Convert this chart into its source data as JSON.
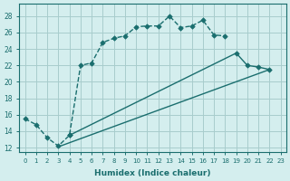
{
  "xlabel": "Humidex (Indice chaleur)",
  "background_color": "#d4eeee",
  "grid_color": "#a8cccc",
  "line_color": "#1a6e6e",
  "xlim": [
    -0.5,
    23.5
  ],
  "ylim": [
    11.5,
    29.5
  ],
  "xticks": [
    0,
    1,
    2,
    3,
    4,
    5,
    6,
    7,
    8,
    9,
    10,
    11,
    12,
    13,
    14,
    15,
    16,
    17,
    18,
    19,
    20,
    21,
    22,
    23
  ],
  "yticks": [
    12,
    14,
    16,
    18,
    20,
    22,
    24,
    26,
    28
  ],
  "curve1_x": [
    0,
    1,
    2,
    3,
    4,
    5,
    6,
    7,
    8,
    9,
    10,
    11,
    12,
    13,
    14,
    15,
    16,
    17,
    18
  ],
  "curve1_y": [
    15.5,
    14.8,
    13.2,
    12.2,
    13.5,
    22.0,
    22.3,
    24.8,
    25.3,
    25.6,
    26.7,
    26.8,
    26.8,
    28.0,
    26.6,
    26.8,
    27.5,
    25.7,
    25.6
  ],
  "curve2_x": [
    4,
    19,
    20,
    21,
    22
  ],
  "curve2_y": [
    13.5,
    23.5,
    22.0,
    21.8,
    21.5
  ],
  "curve3_x": [
    3,
    22
  ],
  "curve3_y": [
    12.1,
    21.5
  ]
}
